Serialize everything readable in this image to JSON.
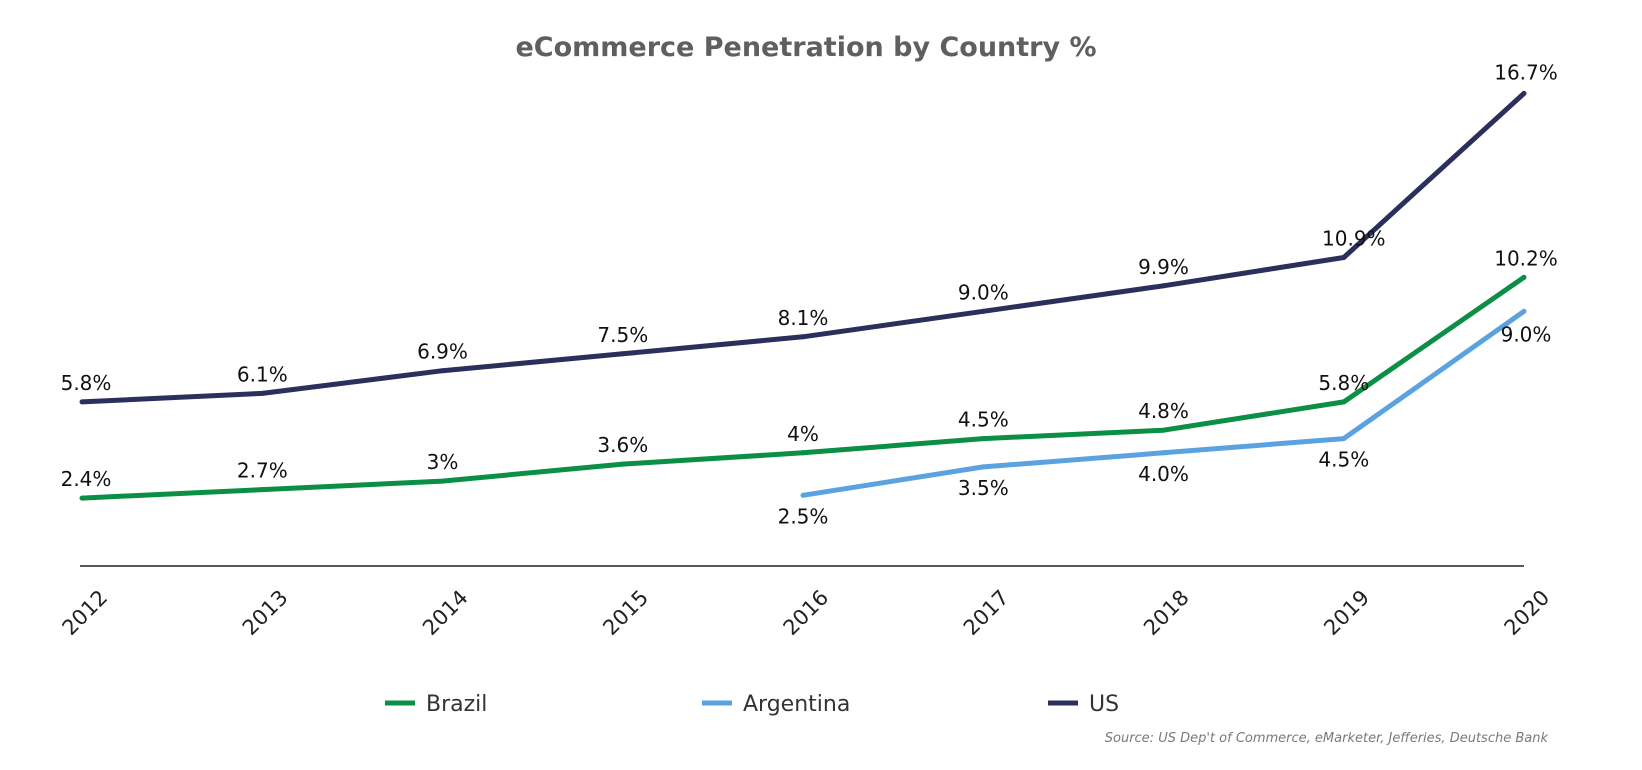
{
  "chart_data": {
    "type": "line",
    "title": "eCommerce Penetration by Country %",
    "xlabel": "",
    "ylabel": "",
    "x": [
      "2012",
      "2013",
      "2014",
      "2015",
      "2016",
      "2017",
      "2018",
      "2019",
      "2020"
    ],
    "ylim": [
      0,
      18
    ],
    "grid": false,
    "legend_position": "bottom",
    "series": [
      {
        "name": "Brazil",
        "color": "#0b8f45",
        "values": [
          2.4,
          2.7,
          3.0,
          3.6,
          4.0,
          4.5,
          4.8,
          5.8,
          10.2
        ],
        "labels": [
          "2.4%",
          "2.7%",
          "3%",
          "3.6%",
          "4%",
          "4.5%",
          "4.8%",
          "5.8%",
          "10.2%"
        ]
      },
      {
        "name": "Argentina",
        "color": "#5ba3e0",
        "values": [
          null,
          null,
          null,
          null,
          2.5,
          3.5,
          4.0,
          4.5,
          9.0
        ],
        "labels": [
          null,
          null,
          null,
          null,
          "2.5%",
          "3.5%",
          "4.0%",
          "4.5%",
          "9.0%"
        ]
      },
      {
        "name": "US",
        "color": "#2b2f5c",
        "values": [
          5.8,
          6.1,
          6.9,
          7.5,
          8.1,
          9.0,
          9.9,
          10.9,
          16.7
        ],
        "labels": [
          "5.8%",
          "6.1%",
          "6.9%",
          "7.5%",
          "8.1%",
          "9.0%",
          "9.9%",
          "10.9%",
          "16.7%"
        ]
      }
    ],
    "source": "Source: US Dep't of Commerce, eMarketer, Jefferies, Deutsche Bank"
  }
}
